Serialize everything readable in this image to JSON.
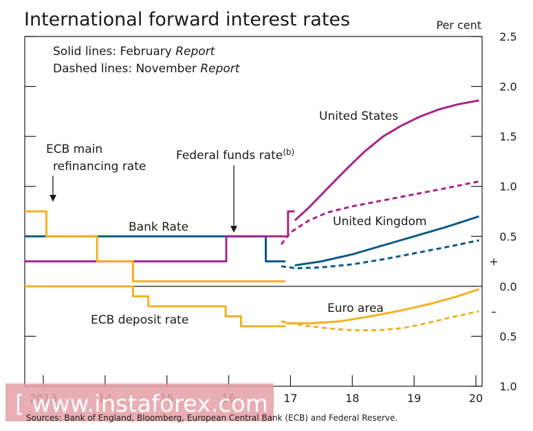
{
  "chart_data": {
    "type": "line",
    "title": "International forward interest rates",
    "ylabel": "Per cent",
    "ylim": [
      -1.0,
      2.5
    ],
    "y_ticks": [
      {
        "value": 2.5,
        "label": "2.5"
      },
      {
        "value": 2.0,
        "label": "2.0"
      },
      {
        "value": 1.5,
        "label": "1.5"
      },
      {
        "value": 1.0,
        "label": "1.0"
      },
      {
        "value": 0.5,
        "label": "0.5"
      },
      {
        "value": 0.0,
        "label": "0.0"
      },
      {
        "value": -0.5,
        "label": "0.5"
      },
      {
        "value": -1.0,
        "label": "1.0"
      }
    ],
    "sign_markers": [
      {
        "value": 0.25,
        "label": "+"
      },
      {
        "value": -0.25,
        "label": "–"
      }
    ],
    "xlim": [
      2012.7,
      2020.1
    ],
    "x_ticks": [
      {
        "value": 2013,
        "label": "2013"
      },
      {
        "value": 2014,
        "label": "14"
      },
      {
        "value": 2015,
        "label": "15"
      },
      {
        "value": 2016,
        "label": "16"
      },
      {
        "value": 2017,
        "label": "17"
      },
      {
        "value": 2018,
        "label": "18"
      },
      {
        "value": 2019,
        "label": "19"
      },
      {
        "value": 2020,
        "label": "20"
      }
    ],
    "legend_lines": [
      {
        "prefix": "Solid lines:  February ",
        "italic": "Report"
      },
      {
        "prefix": "Dashed lines:  November ",
        "italic": "Report"
      }
    ],
    "series": [
      {
        "name": "Bank Rate",
        "color": "#0d5a86",
        "dashed": false,
        "points": [
          [
            2012.7,
            0.5
          ],
          [
            2016.6,
            0.5
          ],
          [
            2016.6,
            0.25
          ],
          [
            2016.92,
            0.25
          ]
        ]
      },
      {
        "name": "Federal funds rate",
        "color": "#a8238a",
        "dashed": false,
        "points": [
          [
            2012.7,
            0.25
          ],
          [
            2015.96,
            0.25
          ],
          [
            2015.96,
            0.5
          ],
          [
            2016.96,
            0.5
          ],
          [
            2016.96,
            0.75
          ],
          [
            2017.07,
            0.75
          ]
        ]
      },
      {
        "name": "ECB main refinancing rate",
        "color": "#f2b124",
        "dashed": false,
        "points": [
          [
            2012.7,
            0.75
          ],
          [
            2013.05,
            0.75
          ],
          [
            2013.05,
            0.5
          ],
          [
            2013.87,
            0.5
          ],
          [
            2013.87,
            0.25
          ],
          [
            2014.45,
            0.25
          ],
          [
            2014.45,
            0.05
          ],
          [
            2015.95,
            0.05
          ],
          [
            2015.95,
            0.05
          ],
          [
            2016.92,
            0.05
          ]
        ]
      },
      {
        "name": "ECB deposit rate",
        "color": "#f2b124",
        "dashed": false,
        "points": [
          [
            2012.7,
            0.0
          ],
          [
            2014.45,
            0.0
          ],
          [
            2014.45,
            -0.1
          ],
          [
            2014.7,
            -0.1
          ],
          [
            2014.7,
            -0.2
          ],
          [
            2015.95,
            -0.2
          ],
          [
            2015.95,
            -0.3
          ],
          [
            2016.2,
            -0.3
          ],
          [
            2016.2,
            -0.4
          ],
          [
            2016.92,
            -0.4
          ]
        ]
      },
      {
        "name": "United States (Feb)",
        "color": "#a8238a",
        "dashed": false,
        "points": [
          [
            2017.07,
            0.66
          ],
          [
            2017.3,
            0.79
          ],
          [
            2017.6,
            0.98
          ],
          [
            2017.9,
            1.17
          ],
          [
            2018.2,
            1.35
          ],
          [
            2018.5,
            1.5
          ],
          [
            2018.8,
            1.61
          ],
          [
            2019.1,
            1.7
          ],
          [
            2019.4,
            1.77
          ],
          [
            2019.7,
            1.82
          ],
          [
            2020.05,
            1.86
          ]
        ]
      },
      {
        "name": "United States (Nov)",
        "color": "#a8238a",
        "dashed": false,
        "dash": true,
        "points": [
          [
            2016.85,
            0.42
          ],
          [
            2017.0,
            0.54
          ],
          [
            2017.3,
            0.66
          ],
          [
            2017.6,
            0.74
          ],
          [
            2018.0,
            0.8
          ],
          [
            2018.5,
            0.86
          ],
          [
            2019.0,
            0.92
          ],
          [
            2019.5,
            0.98
          ],
          [
            2020.05,
            1.05
          ]
        ]
      },
      {
        "name": "United Kingdom (Feb)",
        "color": "#0d5a86",
        "dashed": false,
        "points": [
          [
            2017.07,
            0.21
          ],
          [
            2017.5,
            0.25
          ],
          [
            2018.0,
            0.32
          ],
          [
            2018.5,
            0.41
          ],
          [
            2019.0,
            0.5
          ],
          [
            2019.5,
            0.59
          ],
          [
            2020.05,
            0.7
          ]
        ]
      },
      {
        "name": "United Kingdom (Nov)",
        "color": "#0d5a86",
        "dashed": true,
        "points": [
          [
            2016.85,
            0.2
          ],
          [
            2017.1,
            0.18
          ],
          [
            2017.5,
            0.19
          ],
          [
            2018.0,
            0.22
          ],
          [
            2018.5,
            0.27
          ],
          [
            2019.0,
            0.33
          ],
          [
            2019.5,
            0.39
          ],
          [
            2020.05,
            0.46
          ]
        ]
      },
      {
        "name": "Euro area (Feb)",
        "color": "#f2b124",
        "dashed": false,
        "points": [
          [
            2016.92,
            -0.37
          ],
          [
            2017.3,
            -0.37
          ],
          [
            2017.8,
            -0.35
          ],
          [
            2018.3,
            -0.3
          ],
          [
            2018.8,
            -0.24
          ],
          [
            2019.3,
            -0.17
          ],
          [
            2019.7,
            -0.1
          ],
          [
            2020.05,
            -0.03
          ]
        ]
      },
      {
        "name": "Euro area (Nov)",
        "color": "#f2b124",
        "dashed": true,
        "points": [
          [
            2016.85,
            -0.35
          ],
          [
            2017.2,
            -0.39
          ],
          [
            2017.6,
            -0.42
          ],
          [
            2018.0,
            -0.44
          ],
          [
            2018.4,
            -0.44
          ],
          [
            2018.8,
            -0.42
          ],
          [
            2019.2,
            -0.37
          ],
          [
            2019.6,
            -0.31
          ],
          [
            2020.05,
            -0.25
          ]
        ]
      }
    ],
    "annotations": {
      "united_states": "United States",
      "united_kingdom": "United Kingdom",
      "euro_area": "Euro area",
      "bank_rate": "Bank Rate",
      "ecb_deposit": "ECB deposit rate",
      "ecb_main_1": "ECB main",
      "ecb_main_2": "refinancing rate",
      "fed_funds": "Federal funds rate",
      "fed_funds_sup": "(b)"
    }
  },
  "source_note": "Sources:  Bank of England, Bloomberg, European Central Bank (ECB) and Federal Reserve.",
  "watermark": "[ www.instaforex.com ]"
}
